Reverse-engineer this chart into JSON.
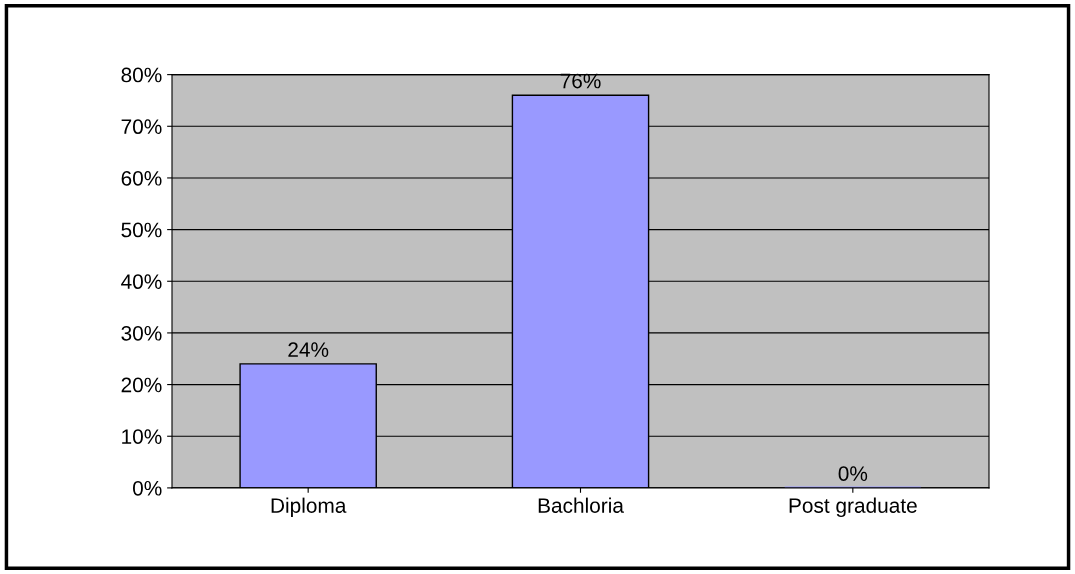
{
  "chart_data": {
    "type": "bar",
    "categories": [
      "Diploma",
      "Bachloria",
      "Post graduate"
    ],
    "values": [
      24,
      76,
      0
    ],
    "color": "#9999ff",
    "value_labels": [
      "24%",
      "76%",
      "0%"
    ],
    "ylim": [
      0,
      80
    ],
    "yticks": [
      {
        "value": 0,
        "label": "0%"
      },
      {
        "value": 10,
        "label": "10%"
      },
      {
        "value": 20,
        "label": "20%"
      },
      {
        "value": 30,
        "label": "30%"
      },
      {
        "value": 40,
        "label": "40%"
      },
      {
        "value": 50,
        "label": "50%"
      },
      {
        "value": 60,
        "label": "60%"
      },
      {
        "value": 70,
        "label": "70%"
      },
      {
        "value": 80,
        "label": "80%"
      }
    ],
    "grid": "y",
    "legend": false
  }
}
